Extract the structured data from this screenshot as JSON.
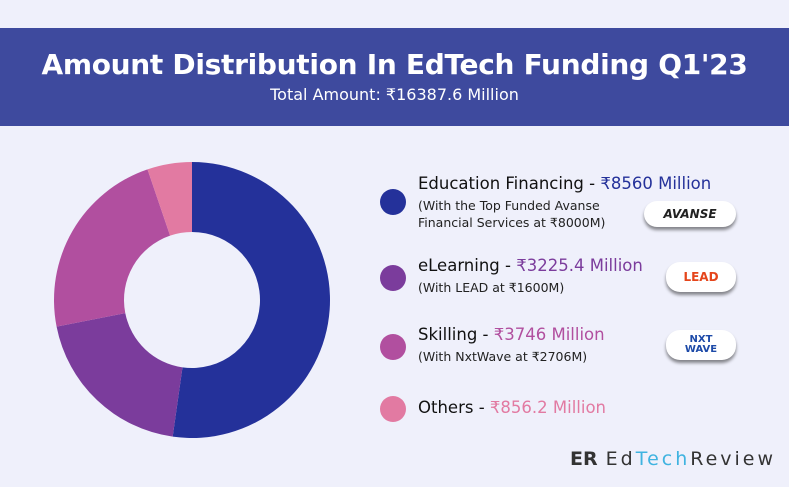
{
  "header": {
    "title": "Amount Distribution In EdTech Funding Q1'23",
    "subtitle": "Total Amount: ₹16387.6 Million"
  },
  "chart_data": {
    "type": "pie",
    "donut": true,
    "categories": [
      "Education Financing",
      "eLearning",
      "Skilling",
      "Others"
    ],
    "values": [
      8560,
      3225.4,
      3746,
      856.2
    ],
    "unit": "₹ Million",
    "colors": [
      "#24319a",
      "#7b3c9c",
      "#b14f9f",
      "#e27aa2"
    ]
  },
  "legend": [
    {
      "name": "Education Financing",
      "value_label": "₹8560 Million",
      "detail": "(With the Top Funded Avanse Financial Services at ₹8000M)",
      "logo": "AVANSE",
      "color": "#24319a"
    },
    {
      "name": "eLearning",
      "value_label": "₹3225.4 Million",
      "detail": "(With LEAD at ₹1600M)",
      "logo": "LEAD",
      "color": "#7b3c9c"
    },
    {
      "name": "Skilling",
      "value_label": "₹3746 Million",
      "detail": "(With NxtWave at ₹2706M)",
      "logo": "NXT WAVE",
      "color": "#b14f9f"
    },
    {
      "name": "Others",
      "value_label": "₹856.2 Million",
      "detail": "",
      "logo": "",
      "color": "#e27aa2"
    }
  ],
  "sep": " - ",
  "brand": {
    "a": "Ed",
    "b": "Tech",
    "c": "Review",
    "mark": "ER"
  }
}
